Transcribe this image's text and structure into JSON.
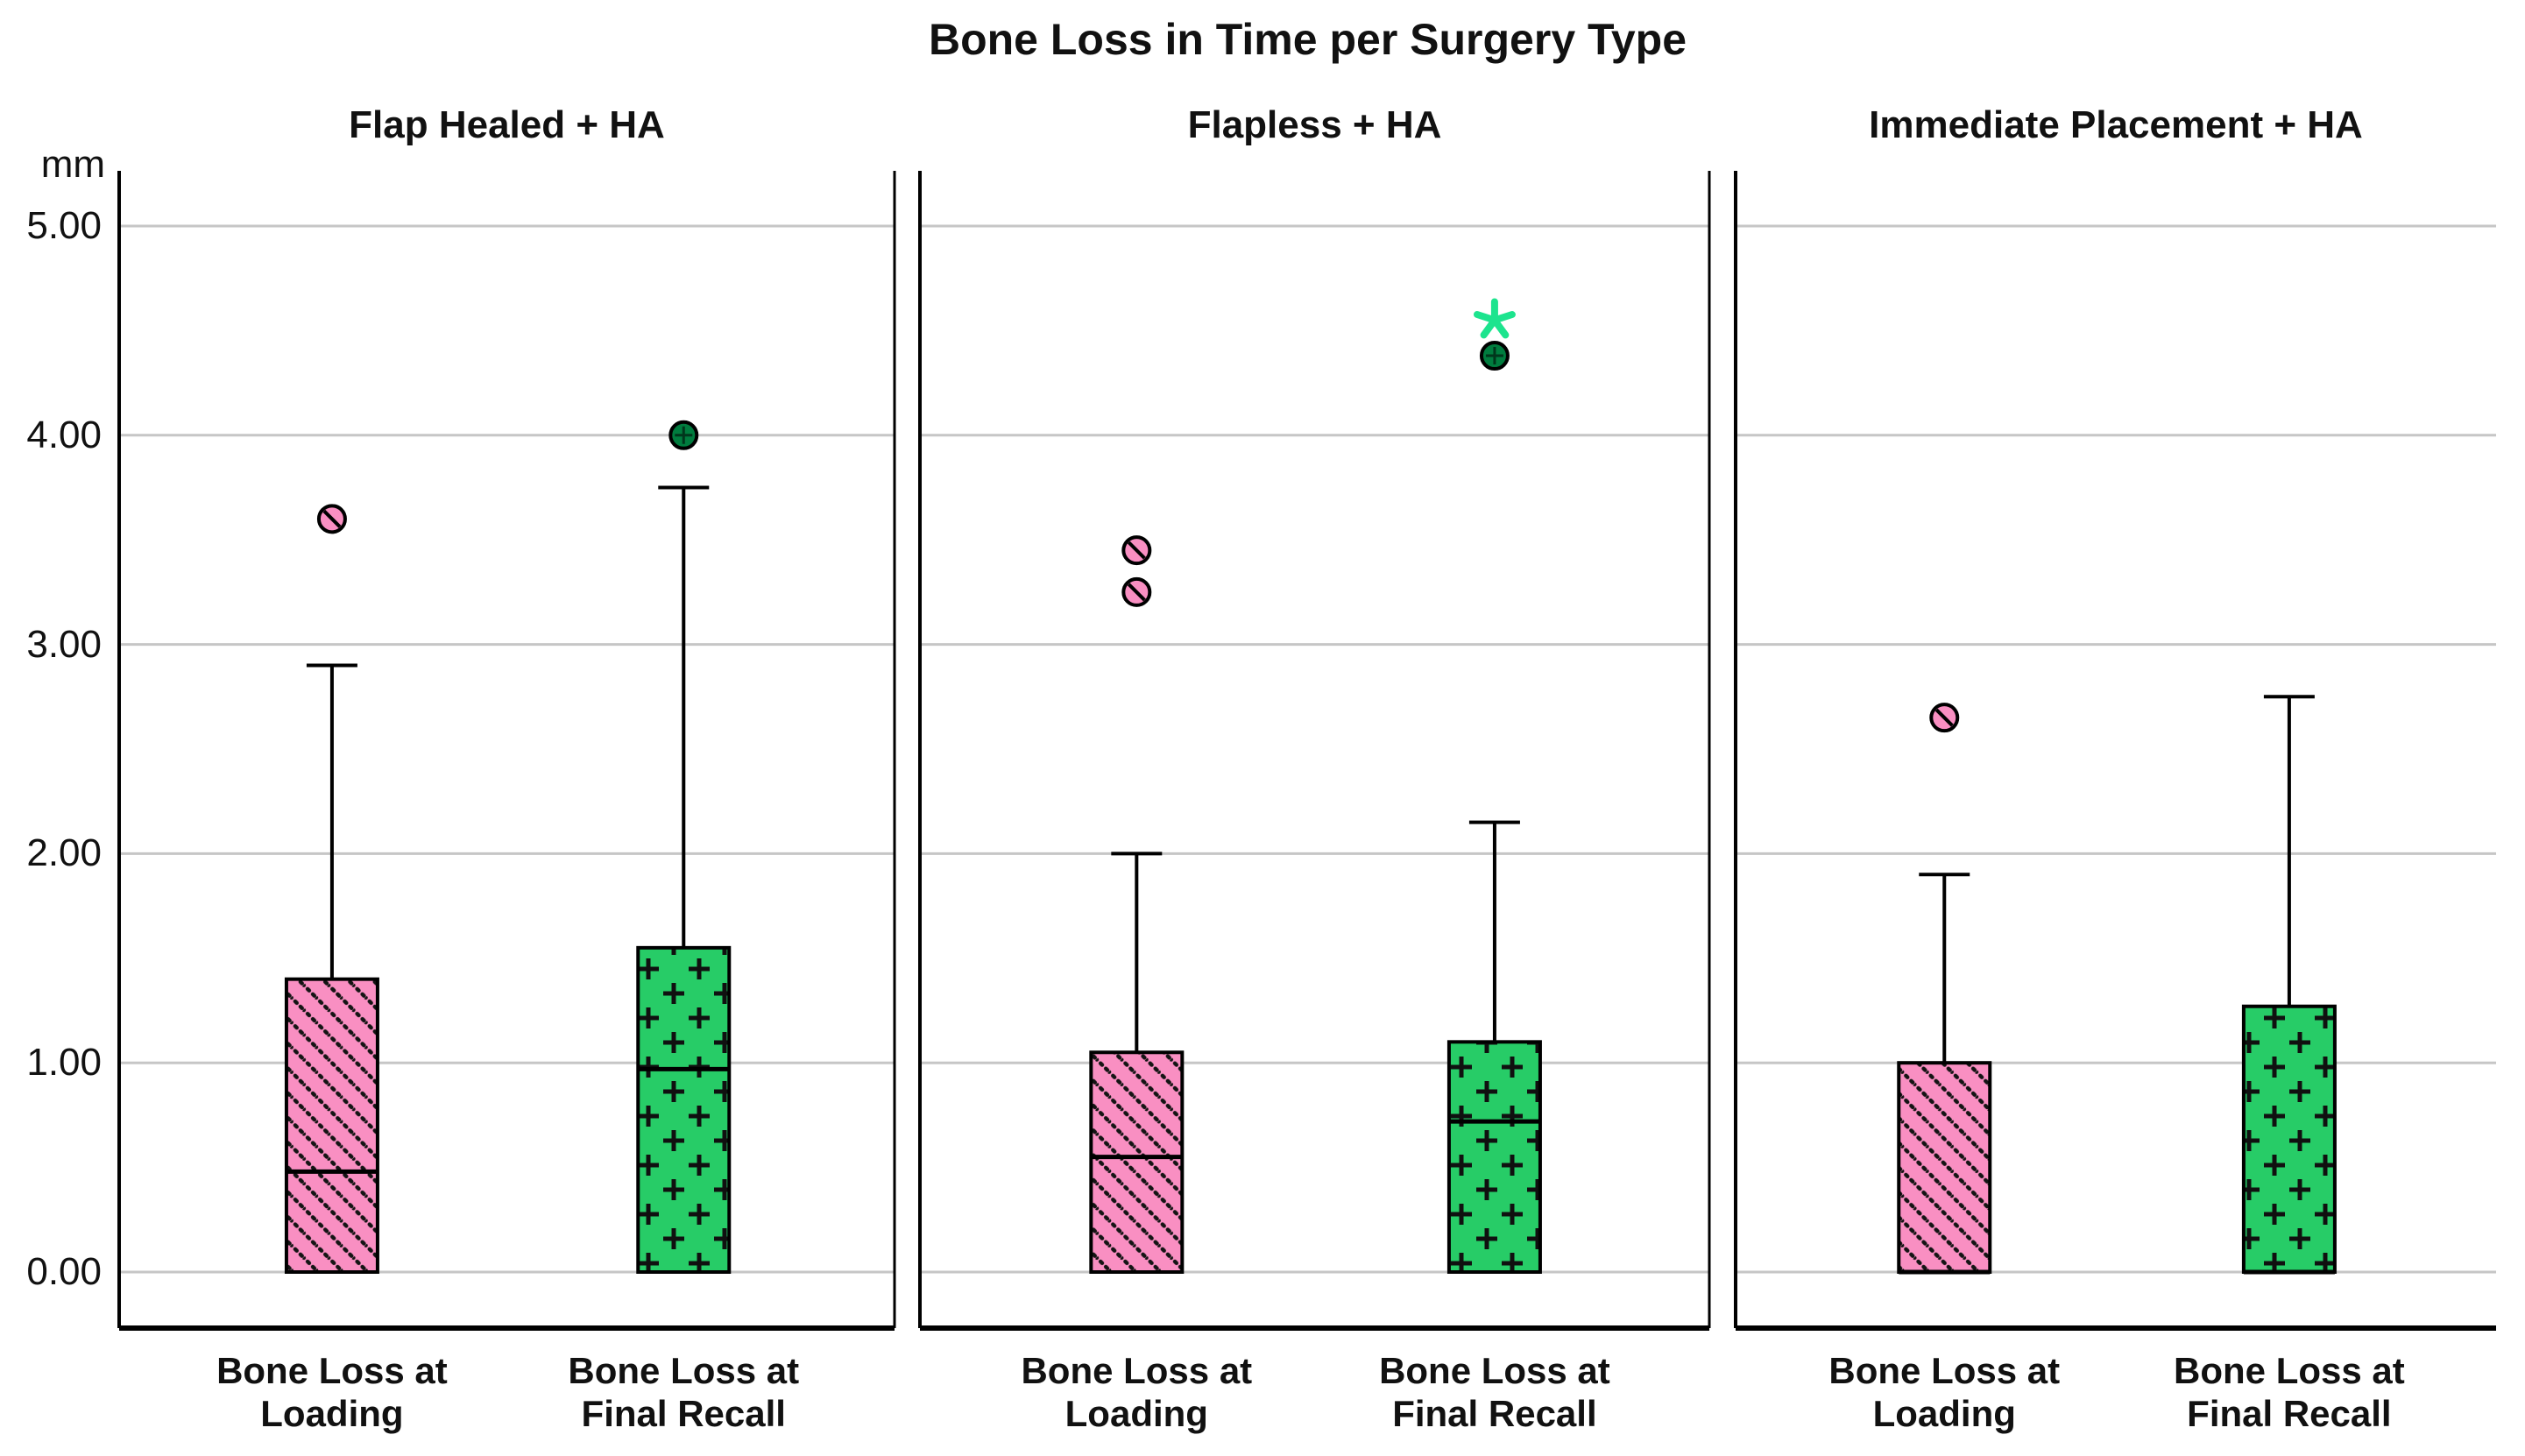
{
  "title": "Bone Loss in Time per Surgery Type",
  "y_axis": {
    "unit": "mm",
    "ticks": [
      "5.00",
      "4.00",
      "3.00",
      "2.00",
      "1.00",
      "0.00"
    ],
    "tick_values": [
      5,
      4,
      3,
      2,
      1,
      0
    ]
  },
  "chart_data": {
    "type": "box",
    "title": "Bone Loss in Time per Surgery Type",
    "ylabel": "mm",
    "ylim": [
      0,
      5.3
    ],
    "grid": "horizontal",
    "categories": [
      "Bone Loss at Loading",
      "Bone Loss at Final Recall"
    ],
    "panels": [
      {
        "title": "Flap Healed + HA",
        "boxes": [
          {
            "series": "loading",
            "label_lines": [
              "Bone Loss at",
              "Loading"
            ],
            "q1": 0.0,
            "median": 0.48,
            "q3": 1.4,
            "whisker_low": 0.0,
            "whisker_high": 2.9,
            "outliers": [
              {
                "value": 3.6,
                "marker": "circle"
              }
            ]
          },
          {
            "series": "final_recall",
            "label_lines": [
              "Bone Loss at",
              "Final Recall"
            ],
            "q1": 0.0,
            "median": 0.97,
            "q3": 1.55,
            "whisker_low": 0.0,
            "whisker_high": 3.75,
            "outliers": [
              {
                "value": 4.0,
                "marker": "circle"
              }
            ]
          }
        ]
      },
      {
        "title": "Flapless + HA",
        "boxes": [
          {
            "series": "loading",
            "label_lines": [
              "Bone Loss at",
              "Loading"
            ],
            "q1": 0.0,
            "median": 0.55,
            "q3": 1.05,
            "whisker_low": 0.0,
            "whisker_high": 2.0,
            "outliers": [
              {
                "value": 3.45,
                "marker": "circle"
              },
              {
                "value": 3.25,
                "marker": "circle"
              }
            ]
          },
          {
            "series": "final_recall",
            "label_lines": [
              "Bone Loss at",
              "Final Recall"
            ],
            "q1": 0.0,
            "median": 0.72,
            "q3": 1.1,
            "whisker_low": 0.0,
            "whisker_high": 2.15,
            "outliers": [
              {
                "value": 4.38,
                "marker": "circle"
              },
              {
                "value": 4.55,
                "marker": "asterisk"
              }
            ]
          }
        ]
      },
      {
        "title": "Immediate Placement + HA",
        "boxes": [
          {
            "series": "loading",
            "label_lines": [
              "Bone Loss at",
              "Loading"
            ],
            "q1": 0.0,
            "median": 0.0,
            "q3": 1.0,
            "whisker_low": 0.0,
            "whisker_high": 1.9,
            "outliers": [
              {
                "value": 2.65,
                "marker": "circle"
              }
            ]
          },
          {
            "series": "final_recall",
            "label_lines": [
              "Bone Loss at",
              "Final Recall"
            ],
            "q1": 0.0,
            "median": 0.0,
            "q3": 1.27,
            "whisker_low": 0.0,
            "whisker_high": 2.75,
            "outliers": []
          }
        ]
      }
    ],
    "styles": {
      "loading_fill": "#F98FC2",
      "loading_hatch": "diagonal-lines",
      "final_recall_fill": "#27CC67",
      "final_recall_hatch": "plus-signs",
      "loading_outlier_fill": "#F98FC2",
      "final_outlier_fill": "#007C3E",
      "extreme_marker_color": "#1DE48E",
      "gridline_color": "#C6C6C6",
      "axis_color": "#000000"
    }
  }
}
